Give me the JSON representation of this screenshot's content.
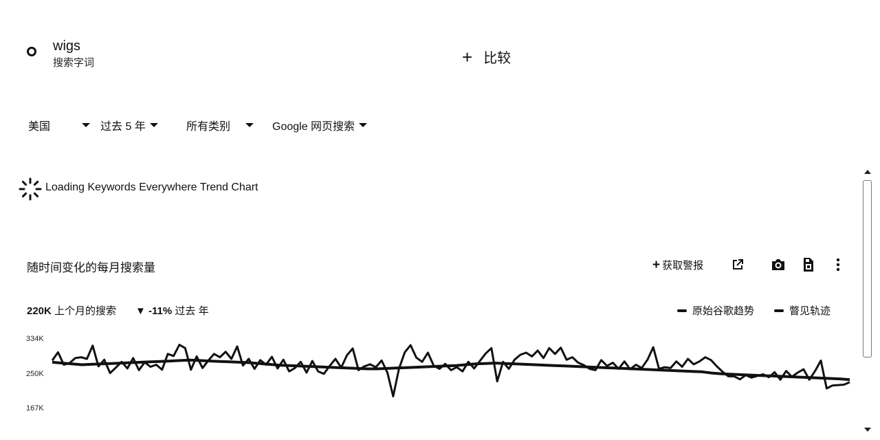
{
  "search": {
    "term": "wigs",
    "term_type": "搜索字词",
    "compare_label": "比较"
  },
  "filters": [
    {
      "label": "美国"
    },
    {
      "label": "过去 5 年"
    },
    {
      "label": "所有类别"
    },
    {
      "label": "Google 网页搜索"
    }
  ],
  "loading": {
    "text": "Loading Keywords Everywhere Trend Chart"
  },
  "chart_header": {
    "title": "随时间变化的每月搜索量",
    "alert_label": "获取警报",
    "icons": [
      "open-in-new-icon",
      "camera-icon",
      "save-file-icon",
      "more-vert-icon"
    ]
  },
  "stats": {
    "last_month_value": "220K",
    "last_month_label": "上个月的搜索",
    "change_value": "-11%",
    "change_label": "过去 年"
  },
  "legend": [
    "原始谷歌趋势",
    "瞥见轨迹"
  ],
  "chart_data": {
    "type": "line",
    "y_ticks": [
      "334K",
      "250K",
      "167K"
    ],
    "ylim": [
      167000,
      334000
    ],
    "series": [
      {
        "name": "原始谷歌趋势",
        "values": [
          282000,
          302000,
          272000,
          276000,
          288000,
          290000,
          286000,
          318000,
          268000,
          284000,
          252000,
          265000,
          279000,
          263000,
          288000,
          259000,
          278000,
          267000,
          272000,
          260000,
          298000,
          293000,
          320000,
          312000,
          260000,
          292000,
          264000,
          282000,
          298000,
          290000,
          303000,
          286000,
          316000,
          270000,
          286000,
          262000,
          283000,
          272000,
          291000,
          263000,
          284000,
          256000,
          264000,
          279000,
          253000,
          281000,
          256000,
          250000,
          269000,
          286000,
          265000,
          295000,
          311000,
          259000,
          268000,
          273000,
          266000,
          282000,
          253000,
          196000,
          262000,
          302000,
          319000,
          289000,
          279000,
          301000,
          270000,
          262000,
          274000,
          259000,
          266000,
          256000,
          279000,
          263000,
          281000,
          299000,
          312000,
          232000,
          279000,
          262000,
          284000,
          296000,
          301000,
          292000,
          306000,
          288000,
          312000,
          298000,
          313000,
          284000,
          290000,
          277000,
          271000,
          262000,
          259000,
          283000,
          269000,
          277000,
          262000,
          280000,
          261000,
          272000,
          264000,
          284000,
          314000,
          262000,
          266000,
          264000,
          280000,
          267000,
          286000,
          273000,
          280000,
          290000,
          283000,
          268000,
          255000,
          244000,
          244000,
          237000,
          247000,
          241000,
          245000,
          249000,
          242000,
          254000,
          236000,
          257000,
          243000,
          253000,
          261000,
          236000,
          257000,
          282000,
          215000,
          222000,
          223000,
          224000,
          230000
        ]
      },
      {
        "name": "瞥见轨迹",
        "values": [
          278000,
          276000,
          274000,
          272000,
          273000,
          274000,
          275000,
          276000,
          277000,
          278000,
          279000,
          280000,
          281000,
          282000,
          283000,
          282000,
          281000,
          280000,
          279000,
          278000,
          277000,
          275000,
          273000,
          271000,
          270000,
          269000,
          268000,
          267000,
          266000,
          265000,
          264000,
          263000,
          262000,
          262000,
          263000,
          264000,
          265000,
          266000,
          267000,
          268000,
          269000,
          270000,
          272000,
          274000,
          275000,
          276000,
          275000,
          274000,
          273000,
          272000,
          271000,
          270000,
          269000,
          268000,
          267000,
          266000,
          265000,
          264000,
          263000,
          262000,
          261000,
          260000,
          259000,
          258000,
          257000,
          256000,
          255000,
          252000,
          250000,
          249000,
          248000,
          247000,
          246000,
          245000,
          244000,
          243000,
          242000,
          241000,
          240000,
          239000,
          238000,
          236000
        ]
      }
    ]
  }
}
